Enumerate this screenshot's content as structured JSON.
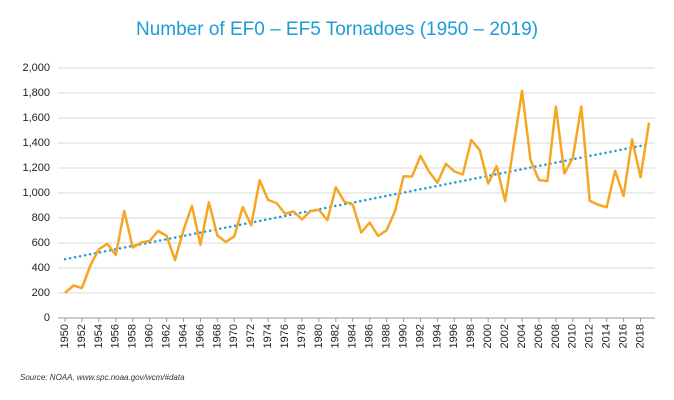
{
  "chart_data": {
    "type": "line",
    "title": "Number of EF0 – EF5 Tornadoes (1950 – 2019)",
    "source": "Source: NOAA, www.spc.noaa.gov/wcm/#data",
    "x": [
      1950,
      1951,
      1952,
      1953,
      1954,
      1955,
      1956,
      1957,
      1958,
      1959,
      1960,
      1961,
      1962,
      1963,
      1964,
      1965,
      1966,
      1967,
      1968,
      1969,
      1970,
      1971,
      1972,
      1973,
      1974,
      1975,
      1976,
      1977,
      1978,
      1979,
      1980,
      1981,
      1982,
      1983,
      1984,
      1985,
      1986,
      1987,
      1988,
      1989,
      1990,
      1991,
      1992,
      1993,
      1994,
      1995,
      1996,
      1997,
      1998,
      1999,
      2000,
      2001,
      2002,
      2003,
      2004,
      2005,
      2006,
      2007,
      2008,
      2009,
      2010,
      2011,
      2012,
      2013,
      2014,
      2015,
      2016,
      2017,
      2018,
      2019
    ],
    "series": [
      {
        "color": "#f5a623",
        "values": [
          201,
          260,
          240,
          421,
          550,
          593,
          504,
          856,
          564,
          604,
          616,
          697,
          657,
          463,
          704,
          897,
          585,
          926,
          660,
          608,
          653,
          888,
          741,
          1102,
          945,
          919,
          834,
          852,
          789,
          855,
          866,
          783,
          1046,
          931,
          907,
          684,
          764,
          656,
          702,
          856,
          1133,
          1132,
          1297,
          1173,
          1082,
          1234,
          1173,
          1148,
          1424,
          1343,
          1075,
          1215,
          934,
          1374,
          1817,
          1265,
          1103,
          1096,
          1692,
          1156,
          1282,
          1691,
          938,
          906,
          886,
          1177,
          976,
          1429,
          1126,
          1563
        ]
      }
    ],
    "trend": {
      "color": "#1f9ad6",
      "style": "dotted",
      "x": [
        1950,
        2019
      ],
      "values": [
        470,
        1390
      ]
    },
    "xlim": [
      1950,
      2019
    ],
    "xticks": [
      1950,
      1952,
      1954,
      1956,
      1958,
      1960,
      1962,
      1964,
      1966,
      1968,
      1970,
      1972,
      1974,
      1976,
      1978,
      1980,
      1982,
      1984,
      1986,
      1988,
      1990,
      1992,
      1994,
      1996,
      1998,
      2000,
      2002,
      2004,
      2006,
      2008,
      2010,
      2012,
      2014,
      2016,
      2018
    ],
    "ylim": [
      0,
      2000
    ],
    "yticks": [
      0,
      200,
      400,
      600,
      800,
      {
        "value": 1000,
        "label": "1,000"
      },
      {
        "value": 1200,
        "label": "1,200"
      },
      {
        "value": 1400,
        "label": "1,400"
      },
      {
        "value": 1600,
        "label": "1,600"
      },
      {
        "value": 1800,
        "label": "1,800"
      },
      {
        "value": 2000,
        "label": "2,000"
      }
    ],
    "grid": true
  }
}
